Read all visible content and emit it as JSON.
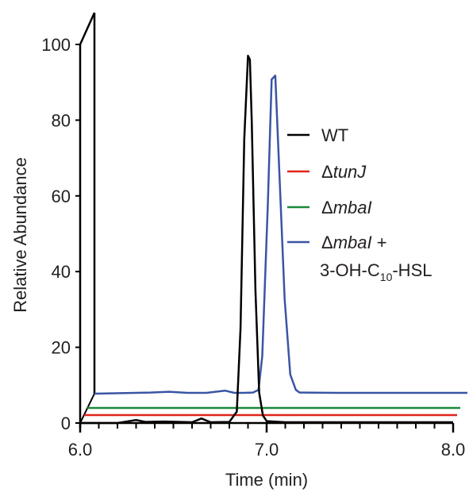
{
  "chart_data": {
    "type": "line",
    "xlabel": "Time (min)",
    "ylabel": "Relative Abundance",
    "xlim": [
      6.0,
      8.0
    ],
    "ylim": [
      0,
      100
    ],
    "x_ticks": [
      "6.0",
      "7.0",
      "8.0"
    ],
    "y_ticks": [
      "0",
      "20",
      "40",
      "60",
      "80",
      "100"
    ],
    "style": "3D-offset stacked chromatograms",
    "legend_placement": "right",
    "legend": [
      {
        "key": "wt",
        "parts": [
          {
            "t": "WT",
            "i": false
          }
        ]
      },
      {
        "key": "tunj",
        "parts": [
          {
            "t": "Δ",
            "i": false
          },
          {
            "t": "tunJ",
            "i": true
          }
        ]
      },
      {
        "key": "mbai",
        "parts": [
          {
            "t": "Δ",
            "i": false
          },
          {
            "t": "mbaI",
            "i": true
          }
        ]
      },
      {
        "key": "mbai_hsl",
        "parts": [
          {
            "t": "Δ",
            "i": false
          },
          {
            "t": "mbaI",
            "i": true
          },
          {
            "t": " +",
            "i": false
          }
        ],
        "line2": {
          "pre": "3-OH-C",
          "sub": "10",
          "post": "-HSL"
        }
      }
    ],
    "series": [
      {
        "key": "wt",
        "name": "WT",
        "color": "#000000",
        "x": [
          6.0,
          6.2,
          6.3,
          6.35,
          6.45,
          6.6,
          6.65,
          6.7,
          6.8,
          6.84,
          6.86,
          6.88,
          6.9,
          6.91,
          6.92,
          6.94,
          6.96,
          6.98,
          7.0,
          7.1,
          7.5,
          8.0
        ],
        "y": [
          0,
          0,
          0.8,
          0.3,
          0.4,
          0.2,
          1.2,
          0.2,
          0.3,
          3,
          25,
          75,
          97,
          96,
          80,
          35,
          8,
          2,
          0.5,
          0.2,
          0.2,
          0.2
        ]
      },
      {
        "key": "tunj",
        "name": "ΔtunJ",
        "color": "#e1251b",
        "x": [
          6.0,
          8.0
        ],
        "y": [
          0,
          0
        ]
      },
      {
        "key": "mbai",
        "name": "ΔmbaI",
        "color": "#1a8a3a",
        "x": [
          6.0,
          8.0
        ],
        "y": [
          0,
          0
        ]
      },
      {
        "key": "mbai_hsl",
        "name": "ΔmbaI + 3-OH-C10-HSL",
        "color": "#3a55a4",
        "x": [
          6.0,
          6.3,
          6.4,
          6.5,
          6.6,
          6.7,
          6.75,
          6.8,
          6.85,
          6.88,
          6.9,
          6.93,
          6.95,
          6.97,
          6.99,
          7.02,
          7.05,
          7.08,
          7.1,
          7.3,
          7.6,
          8.0
        ],
        "y": [
          0,
          0.3,
          0.5,
          0.2,
          0.2,
          0.8,
          0.2,
          0.2,
          0.3,
          1,
          10,
          50,
          83,
          84,
          60,
          25,
          5,
          1,
          0.3,
          0.2,
          0.2,
          0.2
        ]
      }
    ]
  }
}
